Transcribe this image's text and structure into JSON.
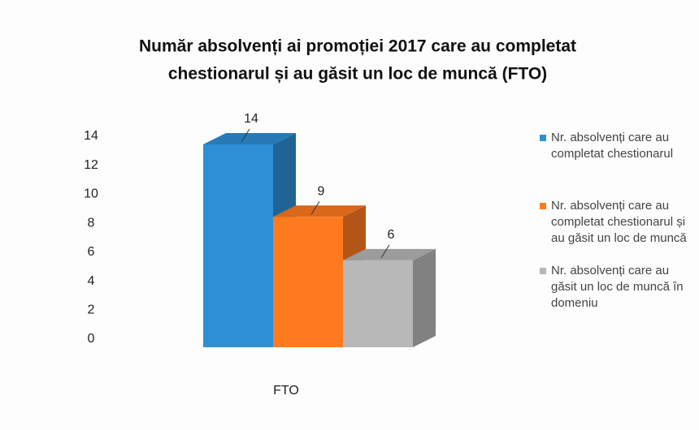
{
  "chart_data": {
    "type": "bar3d",
    "title": [
      "Număr absolvenți ai promoției 2017 care au completat",
      "chestionarul și au găsit un loc de muncă (FTO)"
    ],
    "categories": [
      "FTO"
    ],
    "series": [
      {
        "name": "Nr. absolvenți care au completat chestionarul",
        "color": "#2e8fd6",
        "values": [
          14
        ]
      },
      {
        "name": "Nr. absolvenți care au completat chestionarul și au găsit un loc de muncă",
        "color": "#ff7a1f",
        "values": [
          9
        ]
      },
      {
        "name": "Nr. absolvenți care au găsit un loc de muncă în domeniu",
        "color": "#b8b8b8",
        "values": [
          6
        ]
      }
    ],
    "ylim": [
      0,
      14
    ],
    "yticks": [
      0,
      2,
      4,
      6,
      8,
      10,
      12,
      14
    ],
    "grid": false,
    "legend": "right",
    "data_labels": true
  }
}
